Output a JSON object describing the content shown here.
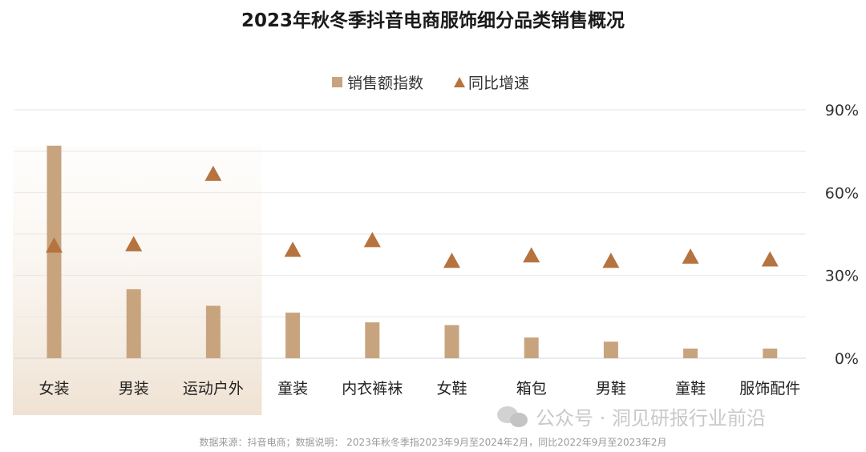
{
  "chart_data": {
    "type": "bar",
    "title": "2023年秋冬季抖音电商服饰细分品类销售概况",
    "categories": [
      "女装",
      "男装",
      "运动户外",
      "童装",
      "内衣裤袜",
      "女鞋",
      "箱包",
      "男鞋",
      "童鞋",
      "服饰配件"
    ],
    "series": [
      {
        "name": "销售额指数",
        "type": "bar",
        "color": "#c8a47e",
        "values": [
          77,
          25,
          19,
          16.5,
          13,
          12,
          7.5,
          6,
          3.5,
          3.5
        ]
      },
      {
        "name": "同比增速",
        "type": "scatter",
        "marker": "triangle",
        "color": "#b5733f",
        "axis": "right",
        "values": [
          41,
          41.5,
          67,
          39.5,
          43,
          35.5,
          37.5,
          35.5,
          37,
          36
        ]
      }
    ],
    "y_right": {
      "ticks": [
        "0%",
        "30%",
        "60%",
        "90%"
      ],
      "min": 0,
      "max": 90
    },
    "grid": true,
    "legend": "top-center",
    "highlight_categories": 3
  },
  "watermark": {
    "text": "公众号 · 洞见研报行业前沿",
    "icon": "wechat-icon"
  },
  "footnote": "数据来源：抖音电商；数据说明：  2023年秋冬季指2023年9月至2024年2月，同比2022年9月至2023年2月"
}
